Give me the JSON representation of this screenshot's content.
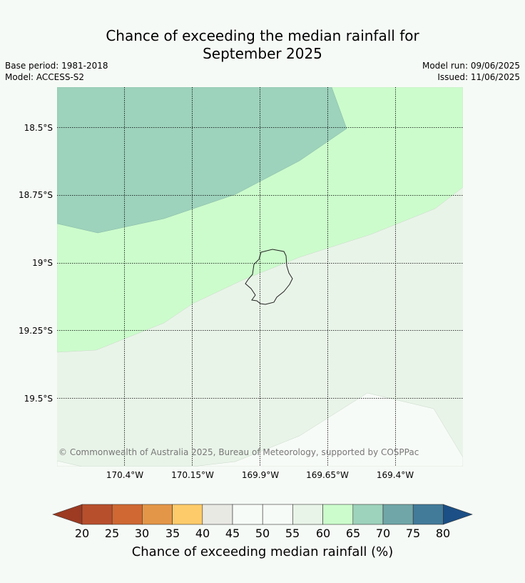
{
  "title_line1": "Chance of exceeding the median rainfall for",
  "title_line2": "September 2025",
  "meta": {
    "base_period": "Base period: 1981-2018",
    "model": "Model: ACCESS-S2",
    "model_run": "Model run: 09/06/2025",
    "issued": "Issued: 11/06/2025"
  },
  "lat_labels": [
    "18.5°S",
    "18.75°S",
    "19°S",
    "19.25°S",
    "19.5°S"
  ],
  "lon_labels": [
    "170.4°W",
    "170.15°W",
    "169.9°W",
    "169.65°W",
    "169.4°W"
  ],
  "copyright": "© Commonwealth of Australia 2025, Bureau of Meteorology, supported by COSPPac",
  "colorbar": {
    "ticks": [
      "20",
      "25",
      "30",
      "35",
      "40",
      "45",
      "50",
      "55",
      "60",
      "65",
      "70",
      "75",
      "80"
    ],
    "colors": [
      "#9c3a22",
      "#b84f2c",
      "#cf6833",
      "#e49648",
      "#fdcb6a",
      "#e9e9e4",
      "#f7fbf7",
      "#f7fbf7",
      "#e9f4e8",
      "#ccfccc",
      "#9dd2bc",
      "#70a6a8",
      "#427b9a",
      "#1b4f85"
    ],
    "label": "Chance of exceeding median rainfall (%)"
  },
  "legend_colors": {
    "class_65_70": "#9dd2bc",
    "class_60_65": "#ccfccc",
    "class_55_60": "#e9f4e8",
    "class_50_55": "#f7fbf7"
  }
}
